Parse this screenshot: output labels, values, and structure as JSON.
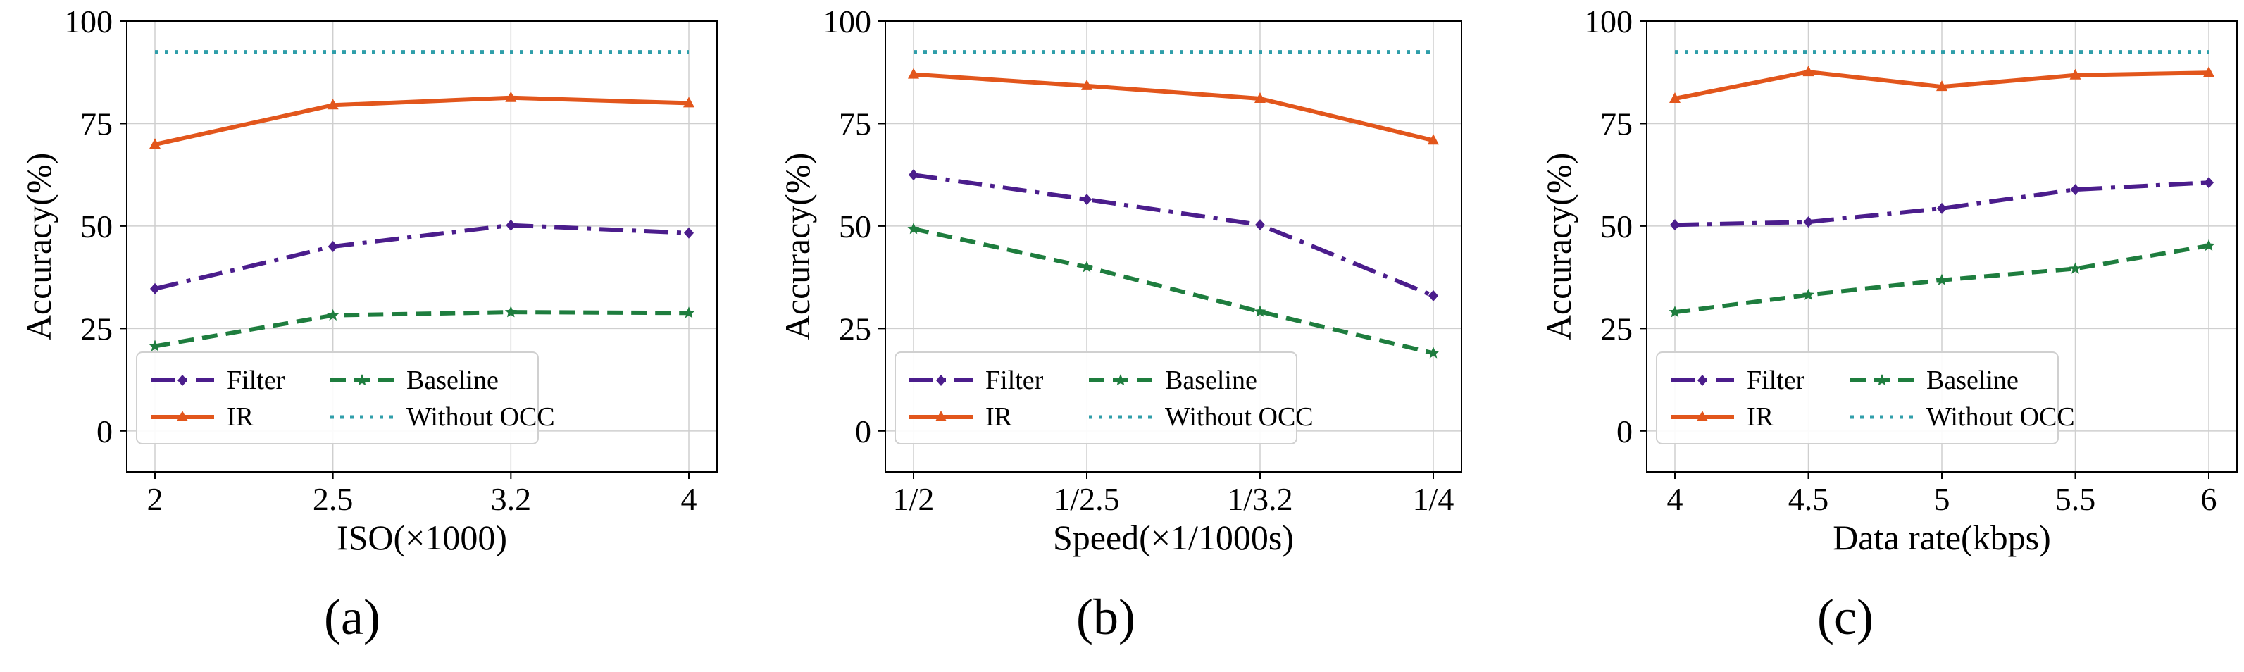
{
  "colors": {
    "filter": "#4b1d8c",
    "ir": "#e2561c",
    "baseline": "#1e7d3e",
    "without_occ": "#2f9eaa",
    "grid": "#cfcfcf",
    "axis": "#000000"
  },
  "legend_labels": {
    "filter": "Filter",
    "ir": "IR",
    "baseline": "Baseline",
    "without_occ": "Without OCC"
  },
  "chart_data": [
    {
      "type": "line",
      "panel_label": "(a)",
      "xlabel": "ISO(×1000)",
      "ylabel": "Accuracy(%)",
      "categories": [
        "2",
        "2.5",
        "3.2",
        "4"
      ],
      "ylim": [
        -10,
        100
      ],
      "yticks": [
        0,
        25,
        50,
        75,
        100
      ],
      "grid": true,
      "legend": "lower-left",
      "series": [
        {
          "key": "filter",
          "name": "Filter",
          "values": [
            34.7,
            45.0,
            50.2,
            48.3
          ]
        },
        {
          "key": "ir",
          "name": "IR",
          "values": [
            69.9,
            79.5,
            81.3,
            80.0
          ]
        },
        {
          "key": "baseline",
          "name": "Baseline",
          "values": [
            20.7,
            28.2,
            29.0,
            28.8
          ]
        },
        {
          "key": "without_occ",
          "name": "Without OCC",
          "values": [
            92.5,
            92.5,
            92.5,
            92.5
          ]
        }
      ]
    },
    {
      "type": "line",
      "panel_label": "(b)",
      "xlabel": "Speed(×1/1000s)",
      "ylabel": "Accuracy(%)",
      "categories": [
        "1/2",
        "1/2.5",
        "1/3.2",
        "1/4"
      ],
      "ylim": [
        -10,
        100
      ],
      "yticks": [
        0,
        25,
        50,
        75,
        100
      ],
      "grid": true,
      "legend": "lower-left",
      "series": [
        {
          "key": "filter",
          "name": "Filter",
          "values": [
            62.5,
            56.5,
            50.3,
            33.0
          ]
        },
        {
          "key": "ir",
          "name": "IR",
          "values": [
            87.0,
            84.2,
            81.1,
            70.9
          ]
        },
        {
          "key": "baseline",
          "name": "Baseline",
          "values": [
            49.3,
            40.0,
            29.1,
            19.0
          ]
        },
        {
          "key": "without_occ",
          "name": "Without OCC",
          "values": [
            92.5,
            92.5,
            92.5,
            92.5
          ]
        }
      ]
    },
    {
      "type": "line",
      "panel_label": "(c)",
      "xlabel": "Data rate(kbps)",
      "ylabel": "Accuracy(%)",
      "categories": [
        "4",
        "4.5",
        "5",
        "5.5",
        "6"
      ],
      "ylim": [
        -10,
        100
      ],
      "yticks": [
        0,
        25,
        50,
        75,
        100
      ],
      "grid": true,
      "legend": "lower-left",
      "series": [
        {
          "key": "filter",
          "name": "Filter",
          "values": [
            50.3,
            51.0,
            54.3,
            58.9,
            60.6
          ]
        },
        {
          "key": "ir",
          "name": "IR",
          "values": [
            81.1,
            87.6,
            84.0,
            86.8,
            87.4
          ]
        },
        {
          "key": "baseline",
          "name": "Baseline",
          "values": [
            29.0,
            33.2,
            36.8,
            39.6,
            45.2
          ]
        },
        {
          "key": "without_occ",
          "name": "Without OCC",
          "values": [
            92.5,
            92.5,
            92.5,
            92.5,
            92.5
          ]
        }
      ]
    }
  ]
}
